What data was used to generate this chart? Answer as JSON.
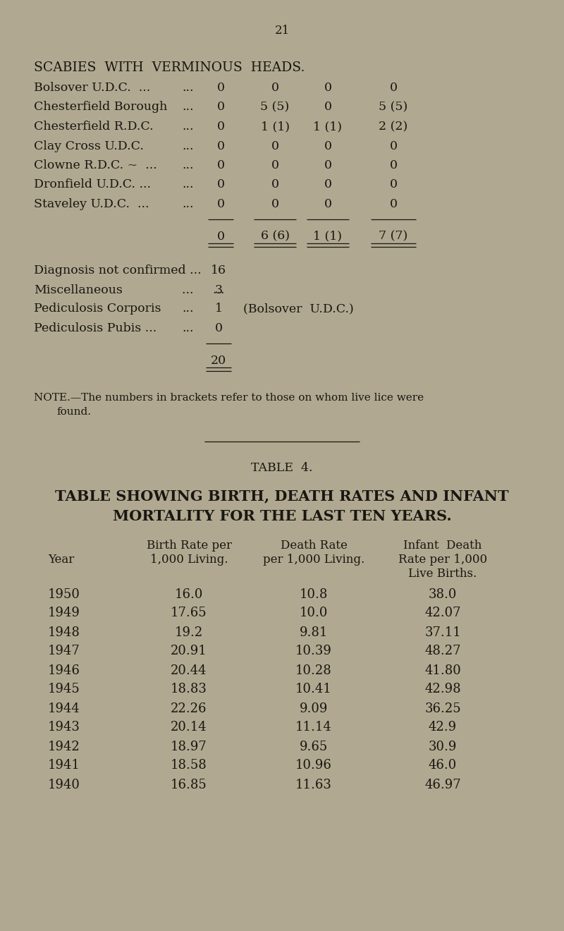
{
  "bg_color": "#b0a890",
  "text_color": "#1a1611",
  "page_number": "21",
  "scabies_title": "SCABIES  WITH  VERMINOUS  HEADS.",
  "scabies_rows": [
    {
      "label1": "Bolsover U.D.C.  ...",
      "label2": "...",
      "c1": "0",
      "c2": "0",
      "c3": "0",
      "c4": "0"
    },
    {
      "label1": "Chesterfield Borough",
      "label2": "...",
      "c1": "0",
      "c2": "5 (5)",
      "c3": "0",
      "c4": "5 (5)"
    },
    {
      "label1": "Chesterfield R.D.C.",
      "label2": "...",
      "c1": "0",
      "c2": "1 (1)",
      "c3": "1 (1)",
      "c4": "2 (2)"
    },
    {
      "label1": "Clay Cross U.D.C.",
      "label2": "...",
      "c1": "0",
      "c2": "0",
      "c3": "0",
      "c4": "0"
    },
    {
      "label1": "Clowne R.D.C. ~  ...",
      "label2": "...",
      "c1": "0",
      "c2": "0",
      "c3": "0",
      "c4": "0"
    },
    {
      "label1": "Dronfield U.D.C. ...",
      "label2": "...",
      "c1": "0",
      "c2": "0",
      "c3": "0",
      "c4": "0"
    },
    {
      "label1": "Staveley U.D.C.  ...",
      "label2": "...",
      "c1": "0",
      "c2": "0",
      "c3": "0",
      "c4": "0"
    }
  ],
  "scabies_totals": {
    "c1": "0",
    "c2": "6 (6)",
    "c3": "1 (1)",
    "c4": "7 (7)"
  },
  "misc_rows": [
    {
      "label1": "Diagnosis not confirmed ...",
      "label2": "",
      "val": "16",
      "note": ""
    },
    {
      "label1": "Miscellaneous",
      "label2": "...     ...",
      "val": "3",
      "note": ""
    },
    {
      "label1": "Pediculosis Corporis",
      "label2": "...",
      "val": "1",
      "note": "(Bolsover  U.D.C.)"
    },
    {
      "label1": "Pediculosis Pubis ...",
      "label2": "...",
      "val": "0",
      "note": ""
    }
  ],
  "grand_total": "20",
  "note_line1": "NOTE.—The numbers in brackets refer to those on whom live lice were",
  "note_line2": "found.",
  "table4_label": "TABLE  4.",
  "table4_title1": "TABLE SHOWING BIRTH, DEATH RATES AND INFANT",
  "table4_title2": "MORTALITY FOR THE LAST TEN YEARS.",
  "col_h1_birth": "Birth Rate per",
  "col_h1_death": "Death Rate",
  "col_h1_infant": "Infant  Death",
  "col_h2_birth": "1,000 Living.",
  "col_h2_death": "per 1,000 Living.",
  "col_h2_infant": "Rate per 1,000",
  "col_h3_infant": "Live Births.",
  "year_col_label": "Year",
  "table4_rows": [
    {
      "year": "1950",
      "birth": "16.0",
      "death": "10.8",
      "infant": "38.0"
    },
    {
      "year": "1949",
      "birth": "17.65",
      "death": "10.0",
      "infant": "42.07"
    },
    {
      "year": "1948",
      "birth": "19.2",
      "death": "9.81",
      "infant": "37.11"
    },
    {
      "year": "1947",
      "birth": "20.91",
      "death": "10.39",
      "infant": "48.27"
    },
    {
      "year": "1946",
      "birth": "20.44",
      "death": "10.28",
      "infant": "41.80"
    },
    {
      "year": "1945",
      "birth": "18.83",
      "death": "10.41",
      "infant": "42.98"
    },
    {
      "year": "1944",
      "birth": "22.26",
      "death": "9.09",
      "infant": "36.25"
    },
    {
      "year": "1943",
      "birth": "20.14",
      "death": "11.14",
      "infant": "42.9"
    },
    {
      "year": "1942",
      "birth": "18.97",
      "death": "9.65",
      "infant": "30.9"
    },
    {
      "year": "1941",
      "birth": "18.58",
      "death": "10.96",
      "infant": "46.0"
    },
    {
      "year": "1940",
      "birth": "16.85",
      "death": "11.63",
      "infant": "46.97"
    }
  ]
}
